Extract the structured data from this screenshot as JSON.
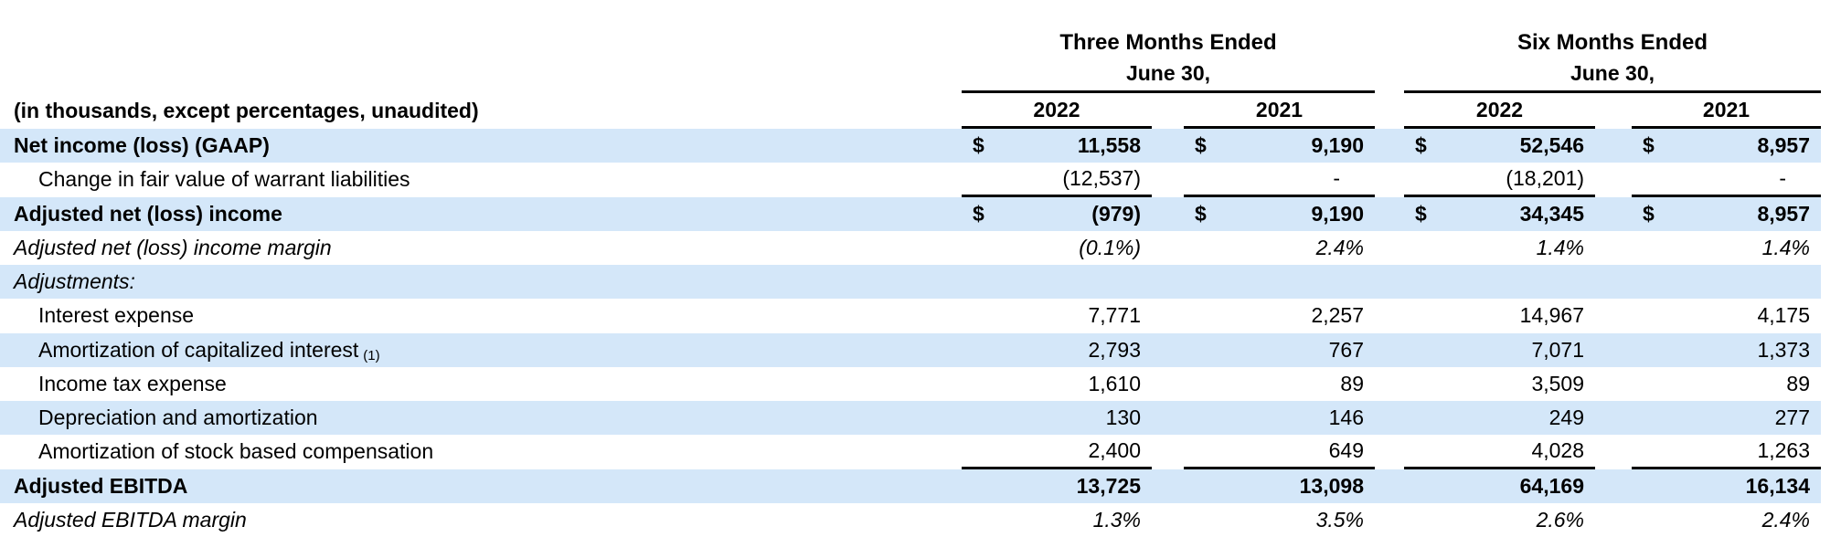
{
  "table": {
    "unit_note": "(in thousands, except percentages, unaudited)",
    "currency_symbol": "$",
    "colors": {
      "band": "#D4E7F9",
      "text": "#000000",
      "rule_line": "#000000",
      "background": "#ffffff"
    },
    "col_groups": [
      {
        "title": "Three Months Ended",
        "subtitle": "June 30,",
        "years": [
          "2022",
          "2021"
        ]
      },
      {
        "title": "Six Months Ended",
        "subtitle": "June 30,",
        "years": [
          "2022",
          "2021"
        ]
      }
    ],
    "rows": [
      {
        "label": "Net income (loss) (GAAP)",
        "style": "bold",
        "indent": 0,
        "currency": true,
        "band": true,
        "underline_below": false,
        "values": [
          "11,558",
          "9,190",
          "52,546",
          "8,957"
        ]
      },
      {
        "label": "Change in fair value of warrant liabilities",
        "style": "",
        "indent": 1,
        "currency": false,
        "band": false,
        "underline_below": true,
        "values": [
          "(12,537)",
          "-",
          "(18,201)",
          "-"
        ]
      },
      {
        "label": "Adjusted net (loss) income",
        "style": "bold",
        "indent": 0,
        "currency": true,
        "band": true,
        "underline_below": false,
        "values": [
          "(979)",
          "9,190",
          "34,345",
          "8,957"
        ]
      },
      {
        "label": "Adjusted net (loss) income margin",
        "style": "italic",
        "indent": 0,
        "currency": false,
        "band": false,
        "underline_below": false,
        "values": [
          "(0.1%)",
          "2.4%",
          "1.4%",
          "1.4%"
        ]
      },
      {
        "label": "Adjustments:",
        "style": "italic",
        "indent": 0,
        "currency": false,
        "band": true,
        "underline_below": false,
        "values": [
          "",
          "",
          "",
          ""
        ]
      },
      {
        "label": "Interest expense",
        "style": "",
        "indent": 1,
        "currency": false,
        "band": false,
        "underline_below": false,
        "values": [
          "7,771",
          "2,257",
          "14,967",
          "4,175"
        ]
      },
      {
        "label": "Amortization of capitalized interest",
        "label_sub": "(1)",
        "style": "",
        "indent": 1,
        "currency": false,
        "band": true,
        "underline_below": false,
        "values": [
          "2,793",
          "767",
          "7,071",
          "1,373"
        ]
      },
      {
        "label": "Income tax expense",
        "style": "",
        "indent": 1,
        "currency": false,
        "band": false,
        "underline_below": false,
        "values": [
          "1,610",
          "89",
          "3,509",
          "89"
        ]
      },
      {
        "label": "Depreciation and amortization",
        "style": "",
        "indent": 1,
        "currency": false,
        "band": true,
        "underline_below": false,
        "values": [
          "130",
          "146",
          "249",
          "277"
        ]
      },
      {
        "label": "Amortization of stock based compensation",
        "style": "",
        "indent": 1,
        "currency": false,
        "band": false,
        "underline_below": true,
        "values": [
          "2,400",
          "649",
          "4,028",
          "1,263"
        ]
      },
      {
        "label": "Adjusted EBITDA",
        "style": "bold",
        "indent": 0,
        "currency": false,
        "band": true,
        "underline_below": false,
        "values": [
          "13,725",
          "13,098",
          "64,169",
          "16,134"
        ]
      },
      {
        "label": "Adjusted EBITDA margin",
        "style": "italic",
        "indent": 0,
        "currency": false,
        "band": false,
        "underline_below": false,
        "values": [
          "1.3%",
          "3.5%",
          "2.6%",
          "2.4%"
        ]
      }
    ]
  }
}
